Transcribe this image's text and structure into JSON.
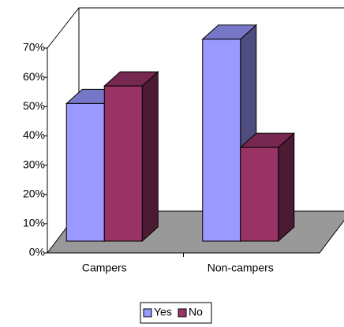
{
  "chart_data": {
    "type": "bar3d",
    "categories": [
      "Campers",
      "Non-campers"
    ],
    "series": [
      {
        "name": "Yes",
        "color": "#9999ff",
        "values": [
          47,
          69
        ]
      },
      {
        "name": "No",
        "color": "#993366",
        "values": [
          53,
          32
        ]
      }
    ],
    "ylim": [
      0,
      70
    ],
    "yticks": [
      {
        "value": 0,
        "label": "0%"
      },
      {
        "value": 10,
        "label": "10%"
      },
      {
        "value": 20,
        "label": "20%"
      },
      {
        "value": 30,
        "label": "30%"
      },
      {
        "value": 40,
        "label": "40%"
      },
      {
        "value": 50,
        "label": "50%"
      },
      {
        "value": 60,
        "label": "60%"
      },
      {
        "value": 70,
        "label": "70%"
      }
    ],
    "legend": "bottom"
  }
}
